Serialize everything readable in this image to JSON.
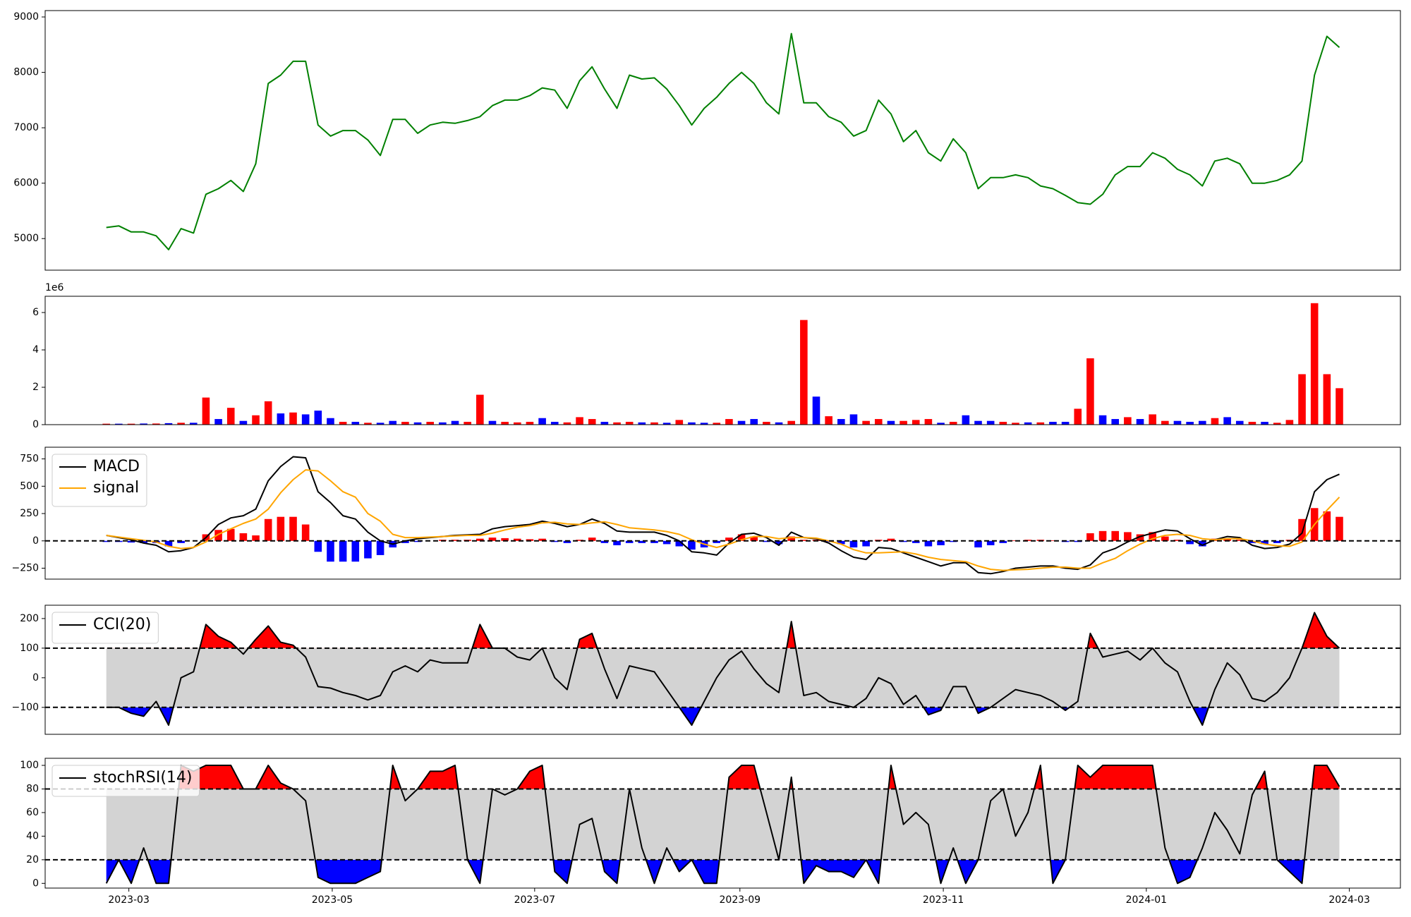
{
  "chart_data": [
    {
      "type": "line",
      "xlim": [
        -4.91,
        103.9
      ],
      "ylim": [
        4430,
        9115
      ],
      "yticks": [
        5000,
        6000,
        7000,
        8000,
        9000
      ],
      "series": [
        {
          "color": "green",
          "values": [
            5200,
            5230,
            5120,
            5120,
            5050,
            4800,
            5180,
            5100,
            5800,
            5900,
            6050,
            5850,
            6350,
            7800,
            7950,
            8200,
            8200,
            7050,
            6850,
            6950,
            6950,
            6780,
            6500,
            7150,
            7150,
            6900,
            7050,
            7100,
            7080,
            7130,
            7200,
            7400,
            7500,
            7500,
            7580,
            7720,
            7680,
            7350,
            7850,
            8100,
            7700,
            7350,
            7950,
            7880,
            7900,
            7700,
            7400,
            7050,
            7350,
            7550,
            7800,
            8000,
            7800,
            7450,
            7250,
            8700,
            7450,
            7450,
            7200,
            7100,
            6850,
            6950,
            7500,
            7250,
            6750,
            6950,
            6550,
            6400,
            6800,
            6550,
            5900,
            6100,
            6100,
            6150,
            6100,
            5950,
            5900,
            5780,
            5650,
            5620,
            5800,
            6150,
            6300,
            6300,
            6550,
            6450,
            6250,
            6150,
            5950,
            6400,
            6450,
            6350,
            6000,
            6000,
            6050,
            6150,
            6400,
            7950,
            8650,
            8450
          ]
        }
      ]
    },
    {
      "type": "bar",
      "xlim": [
        -4.91,
        103.9
      ],
      "ylim": [
        0,
        6.87
      ],
      "yticks": [
        0,
        2,
        4,
        6
      ],
      "offset_text": "1e6",
      "values": [
        0.05,
        0.05,
        0.05,
        0.06,
        0.06,
        0.08,
        0.1,
        0.1,
        1.45,
        0.3,
        0.9,
        0.2,
        0.5,
        1.25,
        0.6,
        0.65,
        0.55,
        0.75,
        0.35,
        0.15,
        0.15,
        0.1,
        0.1,
        0.2,
        0.15,
        0.12,
        0.15,
        0.12,
        0.2,
        0.15,
        1.6,
        0.2,
        0.15,
        0.12,
        0.15,
        0.35,
        0.15,
        0.12,
        0.4,
        0.3,
        0.15,
        0.12,
        0.15,
        0.12,
        0.12,
        0.1,
        0.25,
        0.12,
        0.1,
        0.1,
        0.3,
        0.2,
        0.3,
        0.15,
        0.12,
        0.2,
        5.6,
        1.5,
        0.45,
        0.3,
        0.55,
        0.2,
        0.3,
        0.2,
        0.2,
        0.25,
        0.3,
        0.1,
        0.15,
        0.5,
        0.2,
        0.2,
        0.15,
        0.1,
        0.12,
        0.12,
        0.15,
        0.15,
        0.85,
        3.55,
        0.5,
        0.3,
        0.4,
        0.3,
        0.55,
        0.2,
        0.2,
        0.15,
        0.2,
        0.35,
        0.4,
        0.2,
        0.15,
        0.15,
        0.1,
        0.25,
        2.7,
        6.5,
        2.7,
        1.95
      ],
      "colors": [
        "red",
        "blue",
        "red",
        "blue",
        "red",
        "blue",
        "red",
        "blue",
        "red",
        "blue",
        "red",
        "blue",
        "red",
        "red",
        "blue",
        "red",
        "blue",
        "blue",
        "blue",
        "red",
        "blue",
        "red",
        "blue",
        "blue",
        "red",
        "blue",
        "red",
        "blue",
        "blue",
        "red",
        "red",
        "blue",
        "red",
        "red",
        "red",
        "blue",
        "blue",
        "red",
        "red",
        "red",
        "blue",
        "red",
        "red",
        "blue",
        "red",
        "blue",
        "red",
        "blue",
        "blue",
        "red",
        "red",
        "blue",
        "blue",
        "red",
        "blue",
        "red",
        "red",
        "blue",
        "red",
        "blue",
        "blue",
        "red",
        "red",
        "blue",
        "red",
        "red",
        "red",
        "blue",
        "red",
        "blue",
        "blue",
        "blue",
        "red",
        "red",
        "blue",
        "red",
        "blue",
        "blue",
        "red",
        "red",
        "blue",
        "blue",
        "red",
        "blue",
        "red",
        "red",
        "blue",
        "blue",
        "blue",
        "red",
        "blue",
        "blue",
        "red",
        "blue",
        "red",
        "red",
        "red",
        "red",
        "red",
        "red"
      ]
    },
    {
      "type": "line",
      "xlim": [
        -4.91,
        103.9
      ],
      "ylim": [
        -350,
        857
      ],
      "yticks": [
        {
          "value": -250,
          "label": "−250"
        },
        0,
        250,
        500,
        750
      ],
      "hlines": [
        0
      ],
      "legend": "upper left",
      "histogram": {
        "up_color": "red",
        "down_color": "blue",
        "values": [
          -10,
          -10,
          -15,
          -20,
          -20,
          -50,
          -20,
          0,
          60,
          100,
          110,
          70,
          50,
          200,
          220,
          220,
          150,
          -100,
          -190,
          -190,
          -190,
          -160,
          -130,
          -60,
          -20,
          -10,
          0,
          10,
          10,
          10,
          20,
          30,
          25,
          20,
          15,
          20,
          -10,
          -20,
          10,
          30,
          -20,
          -40,
          -20,
          -20,
          -20,
          -30,
          -50,
          -80,
          -60,
          -20,
          30,
          60,
          40,
          -10,
          -30,
          40,
          10,
          10,
          -10,
          -30,
          -60,
          -50,
          10,
          20,
          -10,
          -20,
          -50,
          -40,
          -10,
          0,
          -60,
          -40,
          -20,
          5,
          10,
          10,
          5,
          -10,
          -10,
          70,
          90,
          90,
          80,
          60,
          80,
          40,
          10,
          -30,
          -50,
          20,
          20,
          10,
          -20,
          -30,
          -20,
          10,
          200,
          300,
          270,
          220
        ]
      },
      "series": [
        {
          "name": "MACD",
          "color": "black",
          "values": [
            50,
            30,
            10,
            -20,
            -40,
            -100,
            -90,
            -60,
            30,
            150,
            210,
            230,
            290,
            550,
            680,
            770,
            760,
            450,
            350,
            230,
            200,
            80,
            0,
            -30,
            0,
            20,
            30,
            40,
            50,
            55,
            60,
            110,
            130,
            140,
            150,
            180,
            160,
            130,
            150,
            200,
            160,
            90,
            80,
            80,
            80,
            50,
            0,
            -100,
            -110,
            -130,
            -20,
            60,
            70,
            30,
            -40,
            80,
            30,
            20,
            -20,
            -90,
            -150,
            -170,
            -60,
            -70,
            -110,
            -150,
            -190,
            -230,
            -200,
            -200,
            -290,
            -300,
            -280,
            -250,
            -240,
            -230,
            -230,
            -250,
            -260,
            -220,
            -110,
            -70,
            -10,
            40,
            70,
            100,
            90,
            20,
            -40,
            10,
            40,
            30,
            -40,
            -70,
            -60,
            -30,
            70,
            450,
            560,
            610
          ]
        },
        {
          "name": "signal",
          "color": "orange",
          "values": [
            50,
            35,
            20,
            5,
            -10,
            -50,
            -70,
            -60,
            -10,
            60,
            110,
            160,
            200,
            290,
            440,
            560,
            650,
            640,
            550,
            450,
            400,
            250,
            180,
            60,
            30,
            30,
            35,
            40,
            45,
            50,
            50,
            70,
            100,
            125,
            140,
            165,
            170,
            155,
            150,
            165,
            175,
            150,
            120,
            110,
            100,
            85,
            60,
            10,
            -30,
            -60,
            -30,
            10,
            40,
            40,
            20,
            30,
            30,
            25,
            0,
            -30,
            -80,
            -110,
            -110,
            -105,
            -100,
            -120,
            -150,
            -170,
            -180,
            -190,
            -230,
            -260,
            -270,
            -265,
            -260,
            -250,
            -240,
            -240,
            -250,
            -250,
            -200,
            -160,
            -90,
            -30,
            20,
            50,
            60,
            50,
            20,
            10,
            20,
            20,
            0,
            -30,
            -45,
            -50,
            -10,
            150,
            280,
            400
          ]
        }
      ]
    },
    {
      "type": "oscillator",
      "xlim": [
        -4.91,
        103.9
      ],
      "ylim": [
        -191,
        245
      ],
      "yticks": [
        {
          "value": -100,
          "label": "−100"
        },
        0,
        100,
        200
      ],
      "legend": "upper left",
      "bands": {
        "lower": -100,
        "upper": 100,
        "fill": "lightgray",
        "upper_color": "red",
        "lower_color": "blue"
      },
      "series": [
        {
          "name": "CCI(20)",
          "color": "black",
          "values": [
            -100,
            -100,
            -120,
            -130,
            -80,
            -160,
            0,
            20,
            180,
            140,
            120,
            80,
            130,
            175,
            120,
            110,
            70,
            -30,
            -35,
            -50,
            -60,
            -75,
            -60,
            20,
            40,
            20,
            60,
            50,
            50,
            50,
            180,
            100,
            100,
            70,
            60,
            100,
            0,
            -40,
            130,
            150,
            30,
            -70,
            40,
            30,
            20,
            -40,
            -100,
            -160,
            -80,
            0,
            60,
            90,
            30,
            -20,
            -50,
            190,
            -60,
            -50,
            -80,
            -90,
            -100,
            -70,
            0,
            -20,
            -90,
            -60,
            -125,
            -110,
            -30,
            -30,
            -120,
            -100,
            -70,
            -40,
            -50,
            -60,
            -80,
            -110,
            -80,
            150,
            70,
            80,
            90,
            60,
            100,
            50,
            20,
            -80,
            -160,
            -40,
            50,
            10,
            -70,
            -80,
            -50,
            0,
            100,
            220,
            140,
            100
          ]
        }
      ]
    },
    {
      "type": "oscillator",
      "xlim": [
        -4.91,
        103.9
      ],
      "ylim": [
        -4,
        106
      ],
      "yticks": [
        0,
        20,
        40,
        60,
        80,
        100
      ],
      "legend": "upper left",
      "bands": {
        "lower": 20,
        "upper": 80,
        "fill": "lightgray",
        "upper_color": "red",
        "lower_color": "blue"
      },
      "xticks": [
        {
          "value": 1.81,
          "label": "2023-03"
        },
        {
          "value": 18.14,
          "label": "2023-05"
        },
        {
          "value": 34.39,
          "label": "2023-07"
        },
        {
          "value": 50.87,
          "label": "2023-09"
        },
        {
          "value": 67.2,
          "label": "2023-11"
        },
        {
          "value": 83.5,
          "label": "2024-01"
        },
        {
          "value": 99.8,
          "label": "2024-03"
        }
      ],
      "series": [
        {
          "name": "stochRSI(14)",
          "color": "black",
          "values": [
            0,
            20,
            0,
            30,
            0,
            0,
            100,
            95,
            100,
            100,
            100,
            80,
            80,
            100,
            85,
            80,
            70,
            5,
            0,
            0,
            0,
            5,
            10,
            100,
            70,
            80,
            95,
            95,
            100,
            20,
            0,
            80,
            75,
            80,
            95,
            100,
            10,
            0,
            50,
            55,
            10,
            0,
            80,
            30,
            0,
            30,
            10,
            20,
            0,
            0,
            90,
            100,
            100,
            60,
            20,
            90,
            0,
            15,
            10,
            10,
            5,
            20,
            0,
            100,
            50,
            60,
            50,
            0,
            30,
            0,
            20,
            70,
            80,
            40,
            60,
            100,
            0,
            20,
            100,
            90,
            100,
            100,
            100,
            100,
            100,
            30,
            0,
            5,
            30,
            60,
            45,
            25,
            75,
            95,
            20,
            10,
            0,
            100,
            100,
            82
          ]
        }
      ]
    }
  ]
}
